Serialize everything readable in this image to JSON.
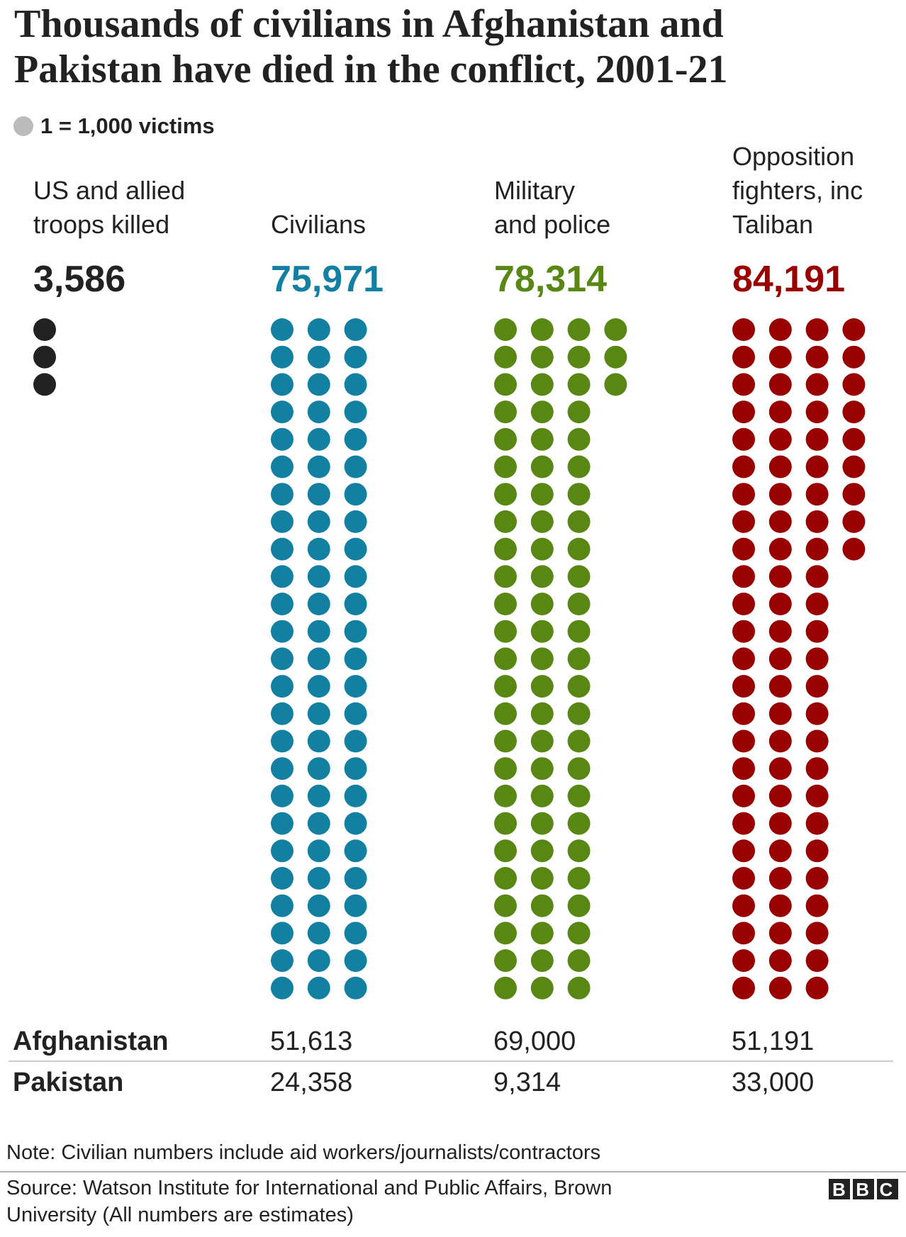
{
  "chart_data": {
    "type": "waffle",
    "title": [
      "Thousands of civilians in Afghanistan and",
      "Pakistan have died in the conflict, 2001-21"
    ],
    "legend": {
      "value": 1000,
      "label": "1 = 1,000 victims"
    },
    "legend_color": "#bbbbbb",
    "categories": [
      [
        "US and allied",
        "troops killed"
      ],
      [
        "Civilians"
      ],
      [
        "Military",
        "and police"
      ],
      [
        "Opposition",
        "fighters, inc",
        "Taliban"
      ]
    ],
    "values": [
      3586,
      75971,
      78314,
      84191
    ],
    "value_labels": [
      "3,586",
      "75,971",
      "78,314",
      "84,191"
    ],
    "colors": [
      "#222222",
      "#1380a1",
      "#588714",
      "#990000"
    ],
    "breakdown": [
      {
        "name": "Afghanistan",
        "values": [
          null,
          51613,
          69000,
          51191
        ],
        "value_labels": [
          null,
          "51,613",
          "69,000",
          "51,191"
        ]
      },
      {
        "name": "Pakistan",
        "values": [
          null,
          24358,
          9314,
          33000
        ],
        "value_labels": [
          null,
          "24,358",
          "9,314",
          "33,000"
        ]
      }
    ],
    "note": "Note: Civilian numbers include aid workers/journalists/contractors",
    "source": [
      "Source: Watson Institute for International and Public Affairs, Brown",
      "University (All numbers are estimates)"
    ],
    "logo": "BBC"
  }
}
